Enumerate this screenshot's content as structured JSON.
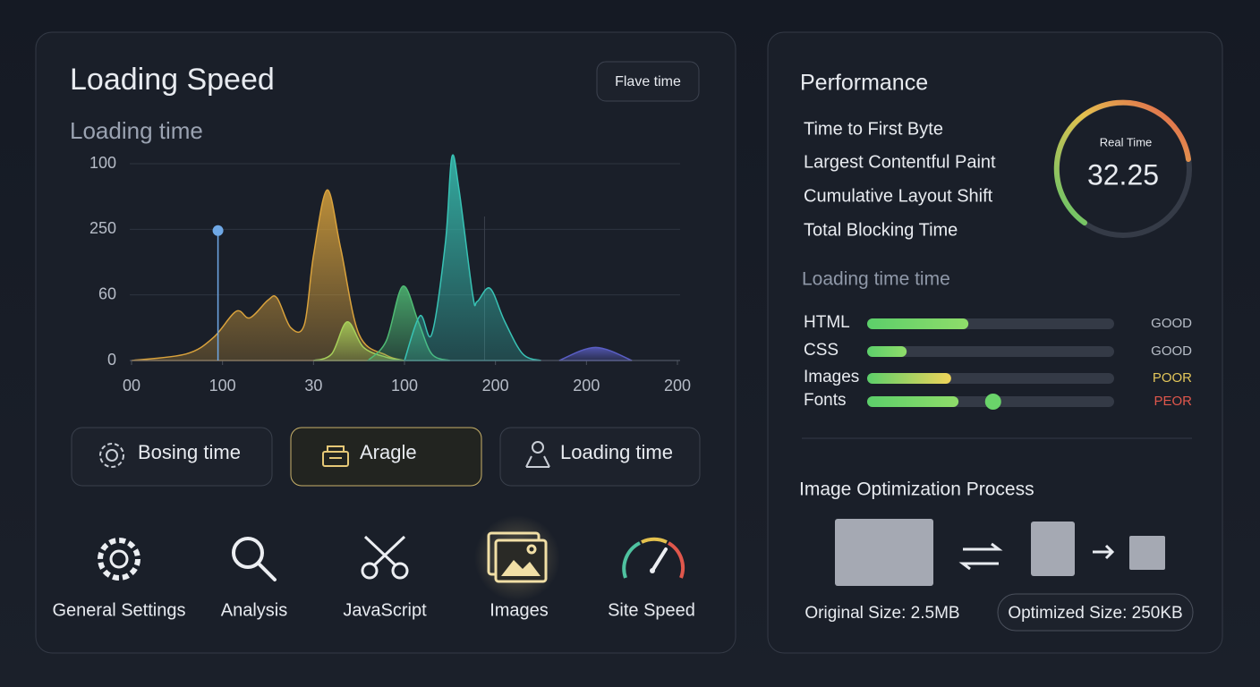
{
  "left_panel": {
    "title": "Loading Speed",
    "button": "Flave time",
    "chart_data": {
      "type": "area",
      "title": "Loading time",
      "xlim": [
        0,
        6
      ],
      "ylim": [
        0,
        3
      ],
      "xticks": [
        {
          "value": 0,
          "label": "00"
        },
        {
          "value": 1,
          "label": "100"
        },
        {
          "value": 2,
          "label": "30"
        },
        {
          "value": 3,
          "label": "100"
        },
        {
          "value": 4,
          "label": "200"
        },
        {
          "value": 5,
          "label": "200"
        },
        {
          "value": 6,
          "label": "200"
        }
      ],
      "yticks": [
        {
          "value": 0,
          "label": "0"
        },
        {
          "value": 1,
          "label": "60"
        },
        {
          "value": 2,
          "label": "250"
        },
        {
          "value": 3,
          "label": "100"
        }
      ],
      "grid": true,
      "series": [
        {
          "color": "#d9a23c",
          "x": [
            0,
            0.6,
            0.9,
            1.15,
            1.3,
            1.5,
            1.6,
            1.75,
            1.9,
            2.0,
            2.15,
            2.3,
            2.5,
            2.8,
            3.0
          ],
          "values": [
            0,
            0.1,
            0.35,
            0.75,
            0.65,
            0.92,
            0.95,
            0.5,
            0.55,
            1.6,
            2.6,
            1.7,
            0.4,
            0.08,
            0
          ]
        },
        {
          "color": "#a7d05a",
          "x": [
            2.0,
            2.2,
            2.37,
            2.55,
            2.8,
            3.0
          ],
          "values": [
            0,
            0.1,
            0.59,
            0.2,
            0.05,
            0
          ]
        },
        {
          "color": "#4fbb74",
          "x": [
            2.6,
            2.8,
            2.98,
            3.15,
            3.3,
            3.5
          ],
          "values": [
            0,
            0.3,
            1.13,
            0.6,
            0.1,
            0
          ]
        },
        {
          "color": "#38c2b4",
          "x": [
            3.0,
            3.17,
            3.3,
            3.45,
            3.52,
            3.6,
            3.75,
            3.8,
            3.94,
            4.1,
            4.3,
            4.5
          ],
          "values": [
            0,
            0.68,
            0.4,
            1.8,
            3.1,
            2.6,
            1.0,
            0.9,
            1.1,
            0.6,
            0.1,
            0
          ]
        },
        {
          "color": "#5a5ec4",
          "x": [
            4.7,
            5.1,
            5.5
          ],
          "values": [
            0,
            0.2,
            0
          ]
        }
      ],
      "marker": {
        "x": 0.95,
        "value": 1.98,
        "color": "#6fa8e6"
      },
      "reference_x": 3.88
    },
    "buttons": [
      "Bosing time",
      "Aragle",
      "Loading time"
    ],
    "nav": [
      "General Settings",
      "Analysis",
      "JavaScript",
      "Images",
      "Site Speed"
    ]
  },
  "right_panel": {
    "title": "Performance",
    "metrics": [
      "Time to First Byte",
      "Largest Contentful Paint",
      "Cumulative Layout Shift",
      "Total Blocking Time"
    ],
    "gauge": {
      "label": "Real Time",
      "value": "32.25"
    },
    "resources_title": "Loading time time",
    "resources": [
      {
        "name": "HTML",
        "percent": 41,
        "status": "GOOD",
        "status_color": "#b8bec8"
      },
      {
        "name": "CSS",
        "percent": 16,
        "status": "GOOD",
        "status_color": "#b8bec8"
      },
      {
        "name": "Images",
        "percent": 34,
        "status": "POOR",
        "status_color": "#e3c65a"
      },
      {
        "name": "Fonts",
        "percent": 37,
        "knob": 51,
        "status": "PEOR",
        "status_color": "#e0574c"
      }
    ],
    "optimization": {
      "title": "Image Optimization Process",
      "original": "Original Size: 2.5MB",
      "optimized": "Optimized Size: 250KB"
    }
  }
}
